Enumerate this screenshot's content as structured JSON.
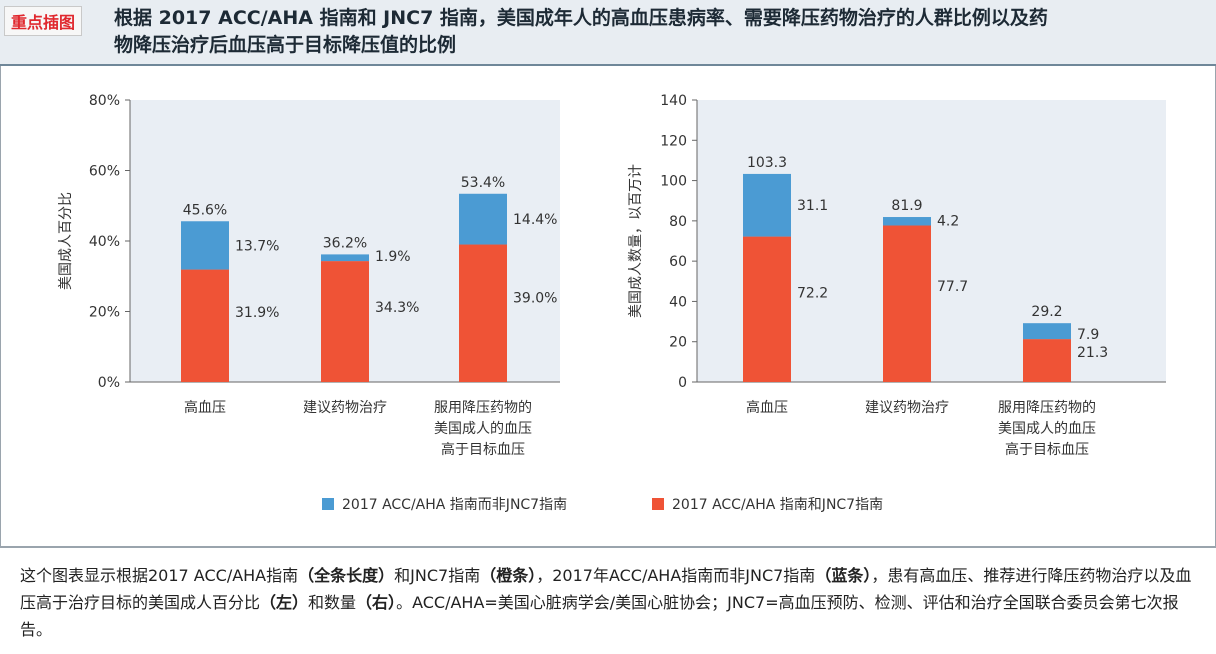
{
  "header": {
    "tag": "重点插图",
    "title_line1": "根据 2017 ACC/AHA 指南和 JNC7 指南，美国成年人的高血压患病率、需要降压药物治疗的人群比例以及药",
    "title_line2": "物降压治疗后血压高于目标降压值的比例"
  },
  "legend": {
    "blue_label": "2017 ACC/AHA 指南而非JNC7指南",
    "orange_label": "2017 ACC/AHA 指南和JNC7指南"
  },
  "colors": {
    "blue": "#4b9bd3",
    "orange": "#ef5336",
    "plot_bg": "#e9eef4"
  },
  "chart_data": [
    {
      "type": "bar",
      "stacked": true,
      "title": "",
      "xlabel": "",
      "ylabel": "美国成人百分比",
      "ylim": [
        0,
        80
      ],
      "yticks": [
        "0%",
        "20%",
        "40%",
        "60%",
        "80%"
      ],
      "categories": [
        [
          "高血压"
        ],
        [
          "建议药物治疗"
        ],
        [
          "服用降压药物的",
          "美国成人的血压",
          "高于目标血压"
        ]
      ],
      "series": [
        {
          "name": "2017 ACC/AHA 指南和JNC7指南",
          "values": [
            31.9,
            34.3,
            39.0
          ],
          "labels": [
            "31.9%",
            "34.3%",
            "39.0%"
          ]
        },
        {
          "name": "2017 ACC/AHA 指南而非JNC7指南",
          "values": [
            13.7,
            1.9,
            14.4
          ],
          "labels": [
            "13.7%",
            "1.9%",
            "14.4%"
          ]
        }
      ],
      "totals": [
        45.6,
        36.2,
        53.4
      ],
      "total_labels": [
        "45.6%",
        "36.2%",
        "53.4%"
      ],
      "grid": false
    },
    {
      "type": "bar",
      "stacked": true,
      "title": "",
      "xlabel": "",
      "ylabel": "美国成人数量，以百万计",
      "ylim": [
        0,
        140
      ],
      "yticks": [
        "0",
        "20",
        "40",
        "60",
        "80",
        "100",
        "120",
        "140"
      ],
      "categories": [
        [
          "高血压"
        ],
        [
          "建议药物治疗"
        ],
        [
          "服用降压药物的",
          "美国成人的血压",
          "高于目标血压"
        ]
      ],
      "series": [
        {
          "name": "2017 ACC/AHA 指南和JNC7指南",
          "values": [
            72.2,
            77.7,
            21.3
          ],
          "labels": [
            "72.2",
            "77.7",
            "21.3"
          ]
        },
        {
          "name": "2017 ACC/AHA 指南而非JNC7指南",
          "values": [
            31.1,
            4.2,
            7.9
          ],
          "labels": [
            "31.1",
            "4.2",
            "7.9"
          ]
        }
      ],
      "totals": [
        103.3,
        81.9,
        29.2
      ],
      "total_labels": [
        "103.3",
        "81.9",
        "29.2"
      ],
      "grid": false
    }
  ],
  "caption": {
    "p1": "这个图表显示根据2017 ACC/AHA指南",
    "b1": "（全条长度）",
    "p2": "和JNC7指南",
    "b2": "（橙条）",
    "p3": "，2017年ACC/AHA指南而非JNC7指南",
    "b3": "（蓝条）",
    "p4": "，患有高血压、推荐进行降压药物治疗以及血压高于治疗目标的美国成人百分比",
    "b4": "（左）",
    "p5": "和数量",
    "b5": "（右）",
    "p6": "。ACC/AHA=美国心脏病学会/美国心脏协会；JNC7=高血压预防、检测、评估和治疗全国联合委员会第七次报告。"
  }
}
